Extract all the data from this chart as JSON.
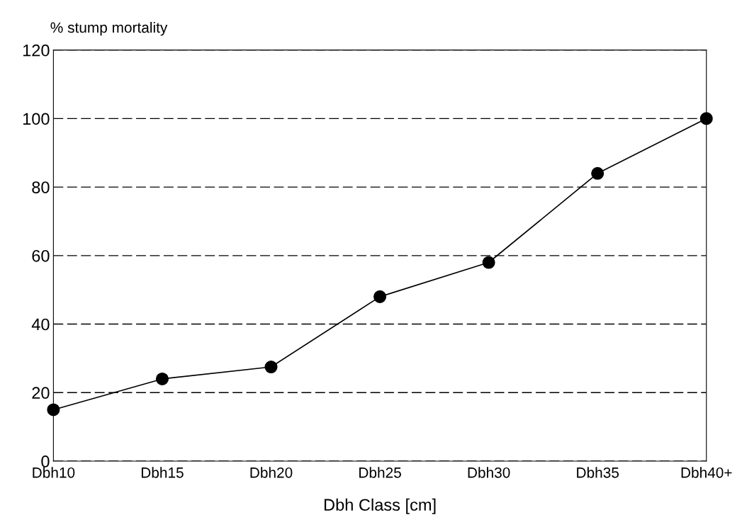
{
  "chart_data": {
    "type": "line",
    "ylabel": "% stump mortality",
    "xlabel": "Dbh Class [cm]",
    "categories": [
      "Dbh10",
      "Dbh15",
      "Dbh20",
      "Dbh25",
      "Dbh30",
      "Dbh35",
      "Dbh40+"
    ],
    "series": [
      {
        "color": "#000000",
        "values": [
          15,
          24,
          27.5,
          48,
          58,
          84,
          100
        ]
      }
    ],
    "ylim": [
      0,
      120
    ],
    "yticks": [
      0,
      20,
      40,
      60,
      80,
      100,
      120
    ],
    "grid": "y",
    "marker": "circle",
    "line_style": "solid",
    "legend": false
  }
}
